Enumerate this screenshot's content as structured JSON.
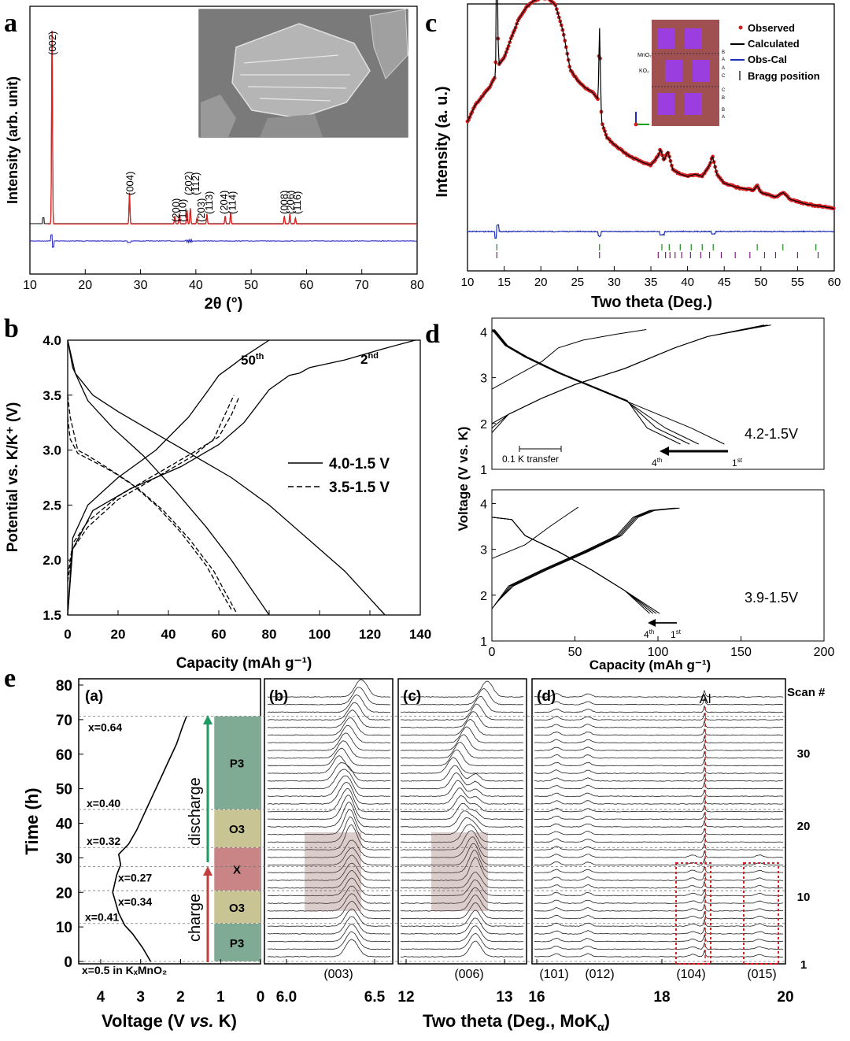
{
  "chart_data": [
    {
      "panel": "a",
      "type": "line",
      "xlabel": "2θ (°)",
      "ylabel": "Intensity (arb. unit)",
      "xlim": [
        10,
        80
      ],
      "xticks": [
        "10",
        "20",
        "30",
        "40",
        "50",
        "60",
        "70",
        "80"
      ],
      "peaks": [
        {
          "x": 14.0,
          "h": 1.0,
          "label": "(002)"
        },
        {
          "x": 28.0,
          "h": 0.16,
          "label": "(004)"
        },
        {
          "x": 36.2,
          "h": 0.04,
          "label": "(200)"
        },
        {
          "x": 37.0,
          "h": 0.05,
          "label": "(110)"
        },
        {
          "x": 38.4,
          "h": 0.07,
          "label": "(202)"
        },
        {
          "x": 39.0,
          "h": 0.08,
          "label": "(112)"
        },
        {
          "x": 40.2,
          "h": 0.03,
          "label": "(203)"
        },
        {
          "x": 42.0,
          "h": 0.05,
          "label": "(113)"
        },
        {
          "x": 45.3,
          "h": 0.04,
          "label": "(204)"
        },
        {
          "x": 46.3,
          "h": 0.06,
          "label": "(114)"
        },
        {
          "x": 56.0,
          "h": 0.04,
          "label": "(008)"
        },
        {
          "x": 57.0,
          "h": 0.05,
          "label": "(206)"
        },
        {
          "x": 58.0,
          "h": 0.03,
          "label": "(116)"
        }
      ]
    },
    {
      "panel": "b",
      "type": "line",
      "xlabel": "Capacity (mAh g⁻¹)",
      "ylabel": "Potential vs. K/K⁺ (V)",
      "xlim": [
        0,
        140
      ],
      "ylim": [
        1.5,
        4.0
      ],
      "xticks": [
        "0",
        "20",
        "40",
        "60",
        "80",
        "100",
        "120",
        "140"
      ],
      "yticks": [
        "1.5",
        "2.0",
        "2.5",
        "3.0",
        "3.5",
        "4.0"
      ],
      "legend": [
        {
          "name": "4.0-1.5 V",
          "style": "solid"
        },
        {
          "name": "3.5-1.5 V",
          "style": "dashed"
        }
      ],
      "annotations": [
        "50",
        "th",
        "2",
        "nd"
      ],
      "series": [
        {
          "name": "2nd charge 4.0-1.5 V",
          "style": "solid",
          "x": [
            0,
            2,
            10,
            25,
            45,
            60,
            70,
            80,
            88,
            92,
            96,
            110,
            125,
            138
          ],
          "y": [
            1.5,
            2.1,
            2.45,
            2.65,
            2.85,
            3.05,
            3.25,
            3.55,
            3.68,
            3.7,
            3.75,
            3.82,
            3.92,
            4.0
          ]
        },
        {
          "name": "2nd discharge 4.0-1.5 V",
          "style": "solid",
          "x": [
            0,
            3,
            10,
            20,
            35,
            50,
            65,
            80,
            95,
            110,
            126
          ],
          "y": [
            4.0,
            3.7,
            3.5,
            3.35,
            3.15,
            2.95,
            2.75,
            2.5,
            2.2,
            1.9,
            1.5
          ]
        },
        {
          "name": "50th charge 4.0-1.5 V",
          "style": "solid",
          "x": [
            0,
            2,
            8,
            20,
            35,
            48,
            56,
            60,
            66,
            70,
            80
          ],
          "y": [
            1.5,
            2.2,
            2.5,
            2.75,
            3.0,
            3.3,
            3.55,
            3.68,
            3.78,
            3.85,
            4.0
          ]
        },
        {
          "name": "50th discharge 4.0-1.5 V",
          "style": "solid",
          "x": [
            0,
            2,
            8,
            18,
            30,
            42,
            55,
            65,
            80
          ],
          "y": [
            4.0,
            3.75,
            3.45,
            3.2,
            2.95,
            2.65,
            2.3,
            2.0,
            1.5
          ]
        },
        {
          "name": "charge A 3.5-1.5 V",
          "style": "dashed",
          "x": [
            0,
            2,
            8,
            20,
            35,
            50,
            58,
            62,
            66
          ],
          "y": [
            1.8,
            2.1,
            2.3,
            2.55,
            2.75,
            2.95,
            3.1,
            3.3,
            3.5
          ]
        },
        {
          "name": "charge B 3.5-1.5 V",
          "style": "dashed",
          "x": [
            0,
            2,
            8,
            20,
            35,
            50,
            60,
            65,
            68
          ],
          "y": [
            1.85,
            2.15,
            2.35,
            2.58,
            2.78,
            2.98,
            3.12,
            3.32,
            3.48
          ]
        },
        {
          "name": "discharge A 3.5-1.5 V",
          "style": "dashed",
          "x": [
            0,
            1,
            4,
            8,
            15,
            25,
            35,
            45,
            55,
            65
          ],
          "y": [
            3.5,
            3.3,
            3.0,
            2.95,
            2.85,
            2.7,
            2.5,
            2.25,
            1.95,
            1.55
          ]
        },
        {
          "name": "discharge B 3.5-1.5 V",
          "style": "dashed",
          "x": [
            0,
            1,
            4,
            10,
            18,
            28,
            38,
            48,
            58,
            67
          ],
          "y": [
            3.3,
            3.1,
            2.97,
            2.9,
            2.8,
            2.65,
            2.45,
            2.2,
            1.9,
            1.52
          ]
        }
      ]
    },
    {
      "panel": "c",
      "type": "line",
      "xlabel": "Two theta (Deg.)",
      "ylabel": "Intensity (a. u.)",
      "xlim": [
        10,
        60
      ],
      "xticks": [
        "10",
        "15",
        "20",
        "25",
        "30",
        "35",
        "40",
        "45",
        "50",
        "55",
        "60"
      ],
      "legend": [
        {
          "name": "Observed",
          "color": "#d42020"
        },
        {
          "name": "Calculated",
          "color": "#000000"
        },
        {
          "name": "Obs-Cal",
          "color": "#1c2db8"
        },
        {
          "name": "Bragg position",
          "color": "#000000"
        }
      ],
      "inset_labels": [
        "MnO₂",
        "KO₂",
        "B",
        "A",
        "A",
        "C",
        "C",
        "B",
        "B",
        "A"
      ],
      "profile": {
        "x": [
          10,
          11,
          12,
          13,
          13.8,
          14,
          14.3,
          15,
          16,
          17,
          18,
          19,
          20,
          21,
          22,
          23,
          24,
          25,
          26,
          27,
          27.8,
          28,
          28.3,
          29,
          30,
          32,
          34,
          35,
          36,
          36.3,
          36.8,
          37.3,
          38,
          39,
          40,
          41,
          42,
          43,
          43.4,
          44,
          45,
          47,
          49,
          49.5,
          50,
          52,
          53,
          54,
          56,
          58,
          60
        ],
        "y": [
          0.45,
          0.52,
          0.56,
          0.6,
          0.65,
          0.95,
          0.7,
          0.73,
          0.82,
          0.9,
          0.95,
          0.98,
          0.99,
          0.99,
          0.96,
          0.85,
          0.68,
          0.63,
          0.6,
          0.58,
          0.55,
          0.68,
          0.45,
          0.38,
          0.35,
          0.3,
          0.27,
          0.26,
          0.3,
          0.33,
          0.28,
          0.32,
          0.24,
          0.22,
          0.21,
          0.22,
          0.21,
          0.26,
          0.3,
          0.22,
          0.18,
          0.16,
          0.15,
          0.17,
          0.14,
          0.12,
          0.14,
          0.11,
          0.09,
          0.08,
          0.07
        ]
      }
    },
    {
      "panel": "d",
      "type": "line",
      "xlabel": "Capacity (mAh g⁻¹)",
      "ylabel": "Voltage (V vs. K)",
      "xlim": [
        0,
        200
      ],
      "xticks": [
        "0",
        "50",
        "100",
        "150",
        "200"
      ],
      "ylim": [
        1,
        4.3
      ],
      "yticks": [
        "1",
        "2",
        "3",
        "4"
      ],
      "subplots": [
        {
          "label": "4.2-1.5V",
          "scale_label": "0.1 K transfer",
          "cycle_first": "1",
          "cycle_first_sup": "st",
          "cycle_last": "4",
          "cycle_last_sup": "th"
        },
        {
          "label": "3.9-1.5V",
          "cycle_first": "1",
          "cycle_first_sup": "st",
          "cycle_last": "4",
          "cycle_last_sup": "th"
        }
      ]
    },
    {
      "panel": "e",
      "type": "line",
      "sub_a": {
        "label": "(a)",
        "xlabel": "Voltage (V vs. K)",
        "ylabel": "Time (h)",
        "xticks": [
          "4",
          "3",
          "2",
          "1",
          "0"
        ],
        "yticks": [
          "0",
          "10",
          "20",
          "30",
          "40",
          "50",
          "60",
          "70",
          "80"
        ],
        "compositions": [
          {
            "label": "x=0.5 in KₓMnO₂",
            "t": 0
          },
          {
            "label": "x=0.41",
            "t": 11
          },
          {
            "label": "x=0.34",
            "t": 20.5
          },
          {
            "label": "x=0.27",
            "t": 27.5
          },
          {
            "label": "x=0.32",
            "t": 33
          },
          {
            "label": "x=0.40",
            "t": 44
          },
          {
            "label": "x=0.64",
            "t": 71
          }
        ],
        "phases": [
          {
            "label": "P3",
            "t0": 0,
            "t1": 11,
            "color": "#7faa93"
          },
          {
            "label": "O3",
            "t0": 11,
            "t1": 20.5,
            "color": "#c9c493"
          },
          {
            "label": "X",
            "t0": 20.5,
            "t1": 33,
            "color": "#c98585"
          },
          {
            "label": "O3",
            "t0": 33,
            "t1": 44,
            "color": "#c9c493"
          },
          {
            "label": "P3",
            "t0": 44,
            "t1": 71,
            "color": "#7faa93"
          }
        ],
        "arrows": [
          "charge",
          "discharge"
        ],
        "voltage_curve": {
          "v": [
            2.75,
            2.95,
            3.2,
            3.4,
            3.55,
            3.7,
            3.6,
            3.5,
            3.55,
            3.3,
            3.1,
            2.9,
            2.7,
            2.5,
            2.3,
            2.1,
            1.95,
            1.85
          ],
          "t": [
            0,
            4,
            8,
            10.5,
            14,
            20,
            25,
            28,
            31,
            34,
            38,
            43,
            48,
            53,
            58,
            63,
            68,
            71
          ]
        }
      },
      "sub_b": {
        "label": "(b)",
        "xticks": [
          "6.0",
          "6.5"
        ],
        "peak_label": "(003)"
      },
      "sub_c": {
        "label": "(c)",
        "xticks": [
          "12",
          "13"
        ],
        "peak_label": "(006)"
      },
      "sub_d": {
        "label": "(d)",
        "xticks": [
          "16",
          "18",
          "20"
        ],
        "peak_labels": [
          "(101)",
          "(012)",
          "(104)",
          "(015)"
        ],
        "marker": "Al"
      },
      "shared_xlabel": "Two theta (Deg., MoK",
      "shared_xlabel_sub": "α",
      "shared_xlabel_end": ")",
      "scan_title": "Scan #",
      "scan_ticks": [
        "30",
        "20",
        "10",
        "1"
      ],
      "scan_count": 35
    }
  ],
  "panel_letters": {
    "a": "a",
    "b": "b",
    "c": "c",
    "d": "d",
    "e": "e"
  }
}
